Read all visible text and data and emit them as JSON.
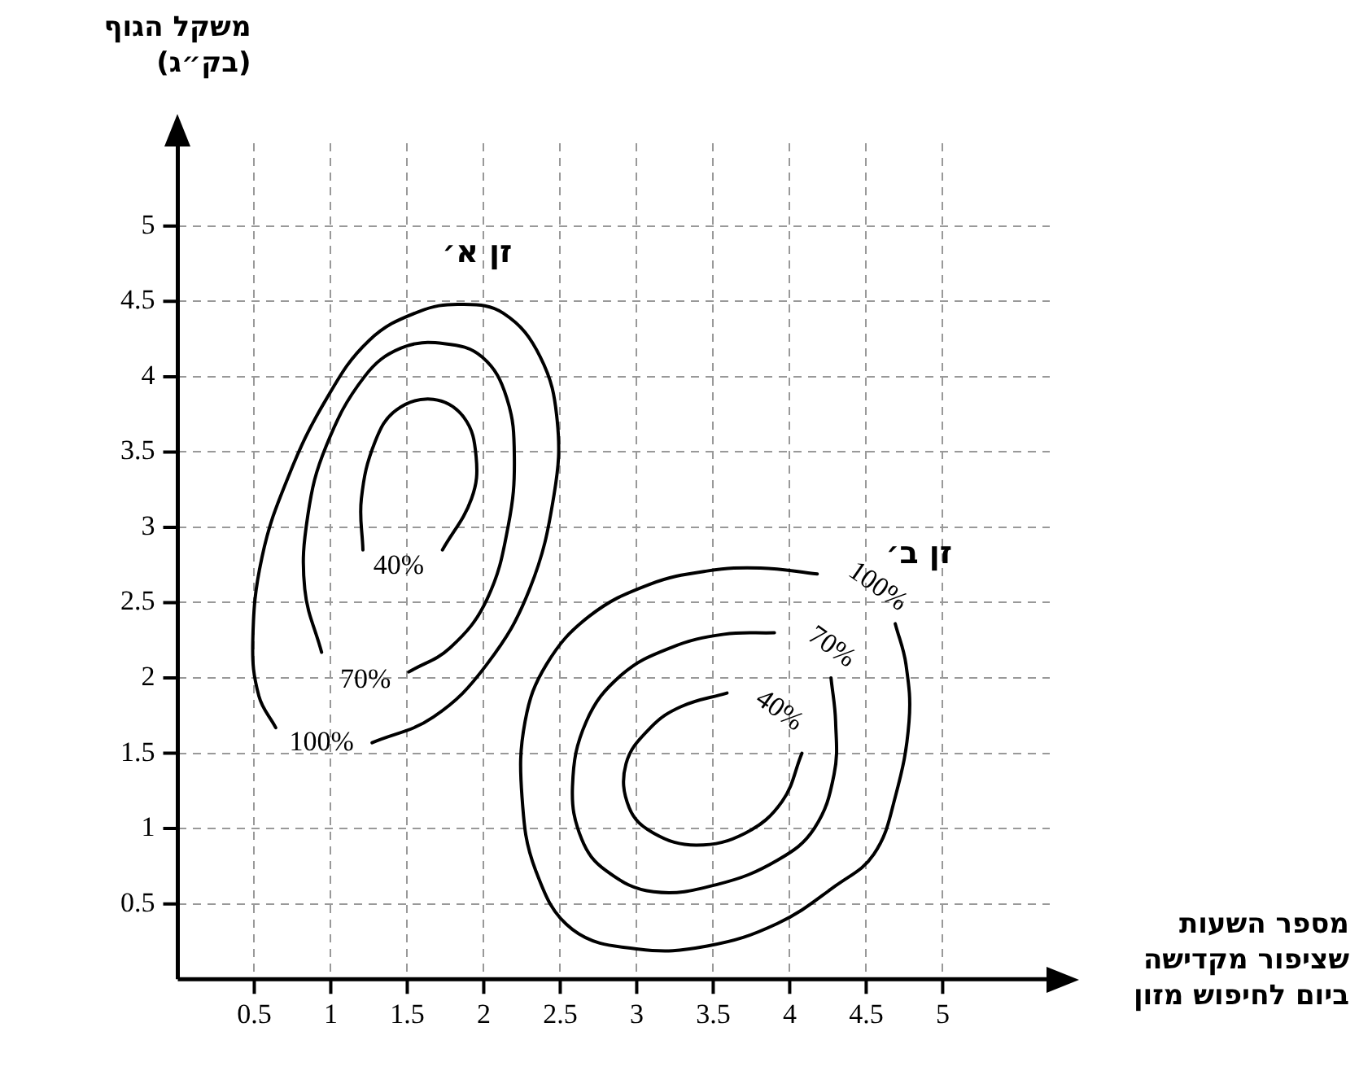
{
  "chart_data": {
    "type": "line",
    "xlabel": "מספר השעות\nשציפור מקדישה\nביום לחיפוש מזון",
    "ylabel": "משקל הגוף\n(בק״ג)",
    "xlim": [
      0,
      5.7
    ],
    "ylim": [
      0,
      5.55
    ],
    "xticks": [
      0.5,
      1,
      1.5,
      2,
      2.5,
      3,
      3.5,
      4,
      4.5,
      5
    ],
    "yticks": [
      0.5,
      1,
      1.5,
      2,
      2.5,
      3,
      3.5,
      4,
      4.5,
      5
    ],
    "grid": true,
    "legend": false,
    "marker": "none",
    "line_style": "solid",
    "series": [
      {
        "name": "100%",
        "color": "#000000",
        "x": [
          1.27,
          1.67,
          2.02,
          2.3,
          2.46,
          2.48,
          2.37,
          2.13,
          1.85,
          1.57,
          1.25,
          0.97,
          0.72,
          0.55,
          0.49,
          0.53,
          0.64
        ],
        "values": [
          1.57,
          1.74,
          2.09,
          2.59,
          3.22,
          3.71,
          4.13,
          4.42,
          4.48,
          4.43,
          4.24,
          3.85,
          3.33,
          2.8,
          2.24,
          1.88,
          1.67
        ]
      },
      {
        "name": "70%",
        "color": "#000000",
        "x": [
          0.94,
          0.83,
          0.85,
          0.97,
          1.22,
          1.46,
          1.74,
          1.99,
          2.15,
          2.2,
          2.16,
          2.02,
          1.78,
          1.51
        ],
        "values": [
          2.17,
          2.59,
          3.08,
          3.54,
          4.0,
          4.19,
          4.22,
          4.13,
          3.86,
          3.47,
          3.01,
          2.52,
          2.2,
          2.04
        ]
      },
      {
        "name": "40%",
        "color": "#000000",
        "x": [
          1.21,
          1.2,
          1.29,
          1.43,
          1.67,
          1.87,
          1.95,
          1.92,
          1.73
        ],
        "values": [
          2.85,
          3.19,
          3.57,
          3.78,
          3.85,
          3.73,
          3.47,
          3.19,
          2.85
        ]
      },
      {
        "name": "100%",
        "color": "#000000",
        "x": [
          4.18,
          3.81,
          3.46,
          3.08,
          2.69,
          2.41,
          2.27,
          2.25,
          2.34,
          2.58,
          3.01,
          3.46,
          3.92,
          4.3,
          4.55,
          4.69,
          4.78,
          4.76,
          4.69
        ],
        "values": [
          2.69,
          2.73,
          2.71,
          2.62,
          2.41,
          2.09,
          1.71,
          1.21,
          0.72,
          0.33,
          0.2,
          0.22,
          0.37,
          0.62,
          0.83,
          1.21,
          1.71,
          2.09,
          2.36
        ]
      },
      {
        "name": "70%",
        "color": "#000000",
        "x": [
          3.9,
          3.57,
          3.22,
          2.9,
          2.67,
          2.58,
          2.64,
          2.8,
          3.11,
          3.53,
          3.92,
          4.16,
          4.29,
          4.3,
          4.27
        ],
        "values": [
          2.3,
          2.29,
          2.2,
          2.02,
          1.71,
          1.28,
          0.93,
          0.72,
          0.58,
          0.63,
          0.79,
          1.0,
          1.36,
          1.71,
          2.0
        ]
      },
      {
        "name": "40%",
        "color": "#000000",
        "x": [
          3.59,
          3.29,
          3.09,
          2.93,
          2.95,
          3.11,
          3.39,
          3.71,
          3.95,
          4.08
        ],
        "values": [
          1.9,
          1.81,
          1.67,
          1.43,
          1.14,
          0.97,
          0.89,
          0.97,
          1.18,
          1.5
        ]
      }
    ],
    "annotations": [
      {
        "text": "זן א׳",
        "x": 1.85,
        "y": 4.48
      },
      {
        "text": "זן ב׳",
        "x": 4.76,
        "y": 2.09
      }
    ]
  }
}
